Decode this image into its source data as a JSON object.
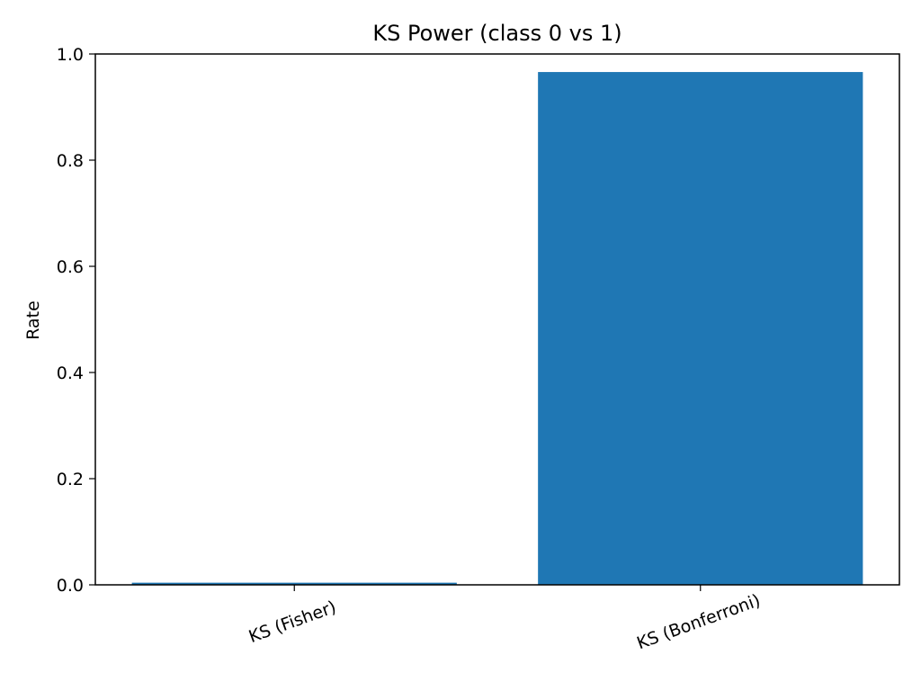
{
  "chart_data": {
    "type": "bar",
    "title": "KS Power (class 0 vs 1)",
    "xlabel": "",
    "ylabel": "Rate",
    "categories": [
      "KS (Fisher)",
      "KS (Bonferroni)"
    ],
    "values": [
      0.004,
      0.966
    ],
    "ylim": [
      0,
      1.0
    ],
    "yticks": [
      "0.0",
      "0.2",
      "0.4",
      "0.6",
      "0.8",
      "1.0"
    ],
    "bar_color": "#1f77b4",
    "grid": false,
    "legend": "none"
  }
}
